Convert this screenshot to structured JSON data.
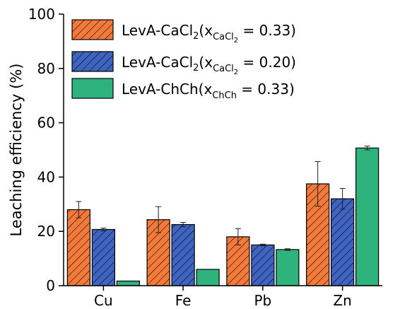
{
  "chart_data": {
    "type": "bar",
    "title": "",
    "xlabel": "",
    "ylabel": "Leaching efficiency (%)",
    "ylim": [
      0,
      100
    ],
    "yticks": [
      0,
      20,
      40,
      60,
      80,
      100
    ],
    "grid": false,
    "legend_position": "top-left",
    "categories": [
      "Cu",
      "Fe",
      "Pb",
      "Zn"
    ],
    "series": [
      {
        "legend": {
          "main": "LevA-CaCl",
          "sub1": "2",
          "paren": "(x",
          "xsub": "CaCl",
          "xsubsub": "2",
          "tail": " = 0.33)"
        },
        "values": [
          28.0,
          24.3,
          18.0,
          37.5
        ],
        "errors": [
          3.0,
          4.8,
          3.0,
          8.2
        ],
        "color": "#f47a3c",
        "pattern": "hatch"
      },
      {
        "legend": {
          "main": "LevA-CaCl",
          "sub1": "2",
          "paren": "(x",
          "xsub": "CaCl",
          "xsubsub": "2",
          "tail": " = 0.20)"
        },
        "values": [
          20.7,
          22.5,
          15.0,
          32.0
        ],
        "errors": [
          0.5,
          0.8,
          0.3,
          3.8
        ],
        "color": "#3f63c1",
        "pattern": "hatch"
      },
      {
        "legend": {
          "main": "LevA-ChCh",
          "sub1": "",
          "paren": "(x",
          "xsub": "ChCh",
          "xsubsub": "",
          "tail": " = 0.33)"
        },
        "values": [
          1.7,
          6.0,
          13.3,
          50.7
        ],
        "errors": [
          0.0,
          0.0,
          0.3,
          0.7
        ],
        "color": "#2eb37d",
        "pattern": "solid"
      }
    ]
  }
}
